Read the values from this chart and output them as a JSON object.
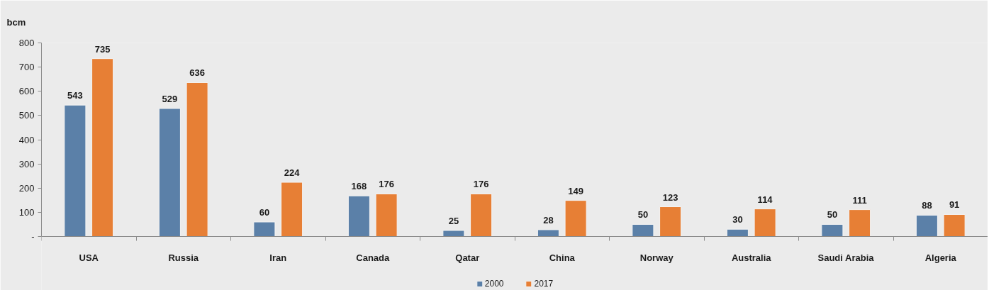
{
  "chart_data": {
    "type": "bar",
    "ylabel": "bcm",
    "categories": [
      "USA",
      "Russia",
      "Iran",
      "Canada",
      "Qatar",
      "China",
      "Norway",
      "Australia",
      "Saudi Arabia",
      "Algeria"
    ],
    "series": [
      {
        "name": "2000",
        "color": "#5b80a8",
        "values": [
          543,
          529,
          60,
          168,
          25,
          28,
          50,
          30,
          50,
          88
        ]
      },
      {
        "name": "2017",
        "color": "#e77f35",
        "values": [
          735,
          636,
          224,
          176,
          176,
          149,
          123,
          114,
          111,
          91
        ]
      }
    ],
    "ylim": [
      0,
      800
    ],
    "yticks": [
      {
        "value": 0,
        "label": "-"
      },
      100,
      200,
      300,
      400,
      500,
      600,
      700,
      800
    ],
    "data_labels": true,
    "grid": false,
    "legend": "bottom"
  }
}
